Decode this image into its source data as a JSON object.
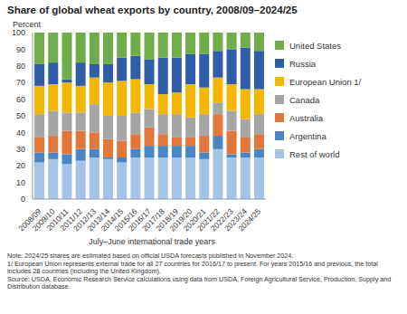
{
  "chart_data": {
    "type": "bar",
    "title": "Share of global wheat exports by country, 2008/09–2024/25",
    "y_label": "Percent",
    "x_label": "July–June international trade years",
    "annotations": [
      "Note: 2024/25 shares are estimated based on official USDA forecasts published in November 2024.",
      "1/ European Union represents external trade for all 27 countries for 2016/17 to present. For years 2015/16 and previous, the total includes 28 countries (including the United Kingdom).",
      "Source: USDA, Economic Research Service calculations using data from USDA, Foreign Agricultural Service, Production, Supply and Distribution database."
    ],
    "categories": [
      "2008/09",
      "2009/10",
      "2010/11",
      "2011/12",
      "2012/13",
      "2013/14",
      "2014/15",
      "2015/16",
      "2016/17",
      "2017/18",
      "2018/19",
      "2019/20",
      "2020/21",
      "2021/22",
      "2022/23",
      "2023/24",
      "2024/25"
    ],
    "series": [
      {
        "name": "Rest of world",
        "color": "#a3c4e6",
        "values": [
          22,
          24,
          21,
          23,
          25,
          24,
          22,
          25,
          25,
          25,
          25,
          25,
          24,
          30,
          25,
          25,
          25
        ]
      },
      {
        "name": "Argentina",
        "color": "#4a86c5",
        "values": [
          6,
          4,
          6,
          7,
          5,
          1,
          3,
          5,
          7,
          7,
          7,
          7,
          4,
          8,
          2,
          3,
          5
        ]
      },
      {
        "name": "Australia",
        "color": "#e3773a",
        "values": [
          9,
          10,
          14,
          11,
          10,
          11,
          10,
          9,
          11,
          7,
          5,
          5,
          10,
          13,
          14,
          9,
          9
        ]
      },
      {
        "name": "Canada",
        "color": "#a5a5a5",
        "values": [
          14,
          15,
          11,
          11,
          17,
          14,
          15,
          13,
          11,
          12,
          14,
          12,
          13,
          7,
          12,
          11,
          12
        ]
      },
      {
        "name": "European Union 1/",
        "color": "#f2b705",
        "values": [
          17,
          16,
          18,
          16,
          16,
          20,
          21,
          20,
          15,
          12,
          13,
          20,
          16,
          15,
          16,
          18,
          15
        ]
      },
      {
        "name": "Russia",
        "color": "#2f5ea7",
        "values": [
          13,
          13,
          2,
          14,
          8,
          11,
          14,
          14,
          15,
          22,
          21,
          18,
          20,
          16,
          21,
          25,
          23
        ]
      },
      {
        "name": "United States",
        "color": "#6fac4a",
        "values": [
          19,
          18,
          28,
          18,
          19,
          19,
          15,
          14,
          16,
          15,
          15,
          13,
          13,
          11,
          10,
          9,
          11
        ]
      }
    ],
    "ylim": [
      0,
      100
    ],
    "yticks": [
      0,
      10,
      20,
      30,
      40,
      50,
      60,
      70,
      80,
      90,
      100
    ],
    "stacked": true,
    "grid": false
  }
}
